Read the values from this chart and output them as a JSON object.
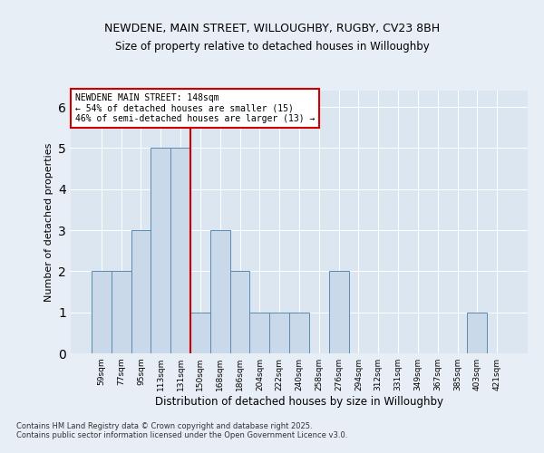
{
  "title_line1": "NEWDENE, MAIN STREET, WILLOUGHBY, RUGBY, CV23 8BH",
  "title_line2": "Size of property relative to detached houses in Willoughby",
  "xlabel": "Distribution of detached houses by size in Willoughby",
  "ylabel": "Number of detached properties",
  "categories": [
    "59sqm",
    "77sqm",
    "95sqm",
    "113sqm",
    "131sqm",
    "150sqm",
    "168sqm",
    "186sqm",
    "204sqm",
    "222sqm",
    "240sqm",
    "258sqm",
    "276sqm",
    "294sqm",
    "312sqm",
    "331sqm",
    "349sqm",
    "367sqm",
    "385sqm",
    "403sqm",
    "421sqm"
  ],
  "values": [
    2,
    2,
    3,
    5,
    5,
    1,
    3,
    2,
    1,
    1,
    1,
    0,
    2,
    0,
    0,
    0,
    0,
    0,
    0,
    1,
    0
  ],
  "bar_color": "#c9d9ea",
  "bar_edge_color": "#5a8ab0",
  "reference_line_x": 4.5,
  "reference_line_color": "#cc0000",
  "annotation_text": "NEWDENE MAIN STREET: 148sqm\n← 54% of detached houses are smaller (15)\n46% of semi-detached houses are larger (13) →",
  "annotation_box_color": "#ffffff",
  "annotation_box_edge_color": "#cc0000",
  "ylim": [
    0,
    6.4
  ],
  "yticks": [
    0,
    1,
    2,
    3,
    4,
    5,
    6
  ],
  "footer_text": "Contains HM Land Registry data © Crown copyright and database right 2025.\nContains public sector information licensed under the Open Government Licence v3.0.",
  "bg_color": "#e8eef5",
  "plot_bg_color": "#dce6f0"
}
